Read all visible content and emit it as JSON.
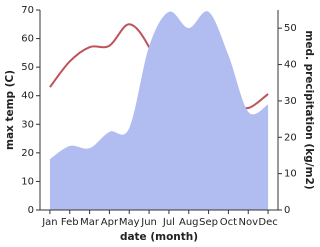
{
  "chart_data": {
    "type": "line-area",
    "x_label": "date (month)",
    "y_label": "max temp (C)",
    "y2_label": "med. precipitation (kg/m2)",
    "categories": [
      "Jan",
      "Feb",
      "Mar",
      "Apr",
      "May",
      "Jun",
      "Jul",
      "Aug",
      "Sep",
      "Oct",
      "Nov",
      "Dec"
    ],
    "series": [
      {
        "name": "max temp",
        "kind": "line",
        "color": "#c0525a",
        "values": [
          43,
          52,
          57,
          57.5,
          65,
          57,
          39.5,
          38.5,
          38.5,
          37.5,
          35.7,
          40.6
        ]
      },
      {
        "name": "med. precipitation",
        "kind": "area",
        "axis": "y2",
        "color": "#b1bcf0",
        "values": [
          14,
          17.6,
          17,
          21.5,
          22.5,
          45,
          54.5,
          50,
          54.5,
          42.6,
          27,
          29
        ]
      }
    ],
    "ylim": [
      0,
      70
    ],
    "yticks": [
      0,
      10,
      20,
      30,
      40,
      50,
      60,
      70
    ],
    "y2lim": [
      0,
      55
    ],
    "y2ticks": [
      0,
      10,
      20,
      30,
      40,
      50
    ]
  }
}
